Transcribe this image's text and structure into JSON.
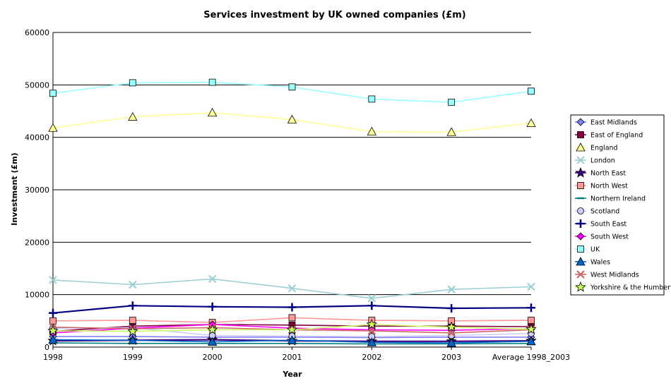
{
  "chart_data": {
    "type": "line",
    "title": "Services investment by UK owned companies (£m)",
    "xlabel": "Year",
    "ylabel": "Investment (£m)",
    "ylim": [
      0,
      60000
    ],
    "yticks": [
      0,
      10000,
      20000,
      30000,
      40000,
      50000,
      60000
    ],
    "grid": true,
    "legend_position": "right",
    "categories": [
      "1998",
      "1999",
      "2000",
      "2001",
      "2002",
      "2003",
      "Average 1998_2003"
    ],
    "series": [
      {
        "name": "East Midlands",
        "color": "#8080ff",
        "marker": "diamond",
        "values": [
          2000,
          2000,
          1900,
          1900,
          1800,
          1900,
          1900
        ]
      },
      {
        "name": "East of England",
        "color": "#800040",
        "marker": "square",
        "values": [
          3000,
          4000,
          4300,
          4200,
          4000,
          4000,
          3900
        ]
      },
      {
        "name": "England",
        "color": "#ffff99",
        "marker": "triangle",
        "values": [
          41800,
          43900,
          44700,
          43400,
          41100,
          41000,
          42700
        ]
      },
      {
        "name": "London",
        "color": "#9fd0d6",
        "marker": "x",
        "values": [
          12800,
          11900,
          13000,
          11200,
          9300,
          11000,
          11500
        ]
      },
      {
        "name": "North East",
        "color": "#400080",
        "marker": "star",
        "values": [
          1200,
          1300,
          1400,
          1200,
          1100,
          1100,
          1200
        ]
      },
      {
        "name": "North West",
        "color": "#ff9999",
        "marker": "square",
        "values": [
          5000,
          5100,
          4700,
          5600,
          5100,
          5000,
          5100
        ]
      },
      {
        "name": "Northern Ireland",
        "color": "#008080",
        "marker": "dash",
        "values": [
          800,
          700,
          700,
          700,
          600,
          600,
          700
        ]
      },
      {
        "name": "Scotland",
        "color": "#ccccff",
        "marker": "circle",
        "values": [
          3600,
          3700,
          2200,
          2100,
          2000,
          2200,
          2600
        ]
      },
      {
        "name": "South East",
        "color": "#000080",
        "marker": "plus",
        "values": [
          6500,
          7900,
          7700,
          7600,
          7900,
          7400,
          7500
        ]
      },
      {
        "name": "South West",
        "color": "#ff00ff",
        "marker": "diamond",
        "values": [
          2700,
          3600,
          4300,
          3600,
          3300,
          3200,
          3500
        ]
      },
      {
        "name": "UK",
        "color": "#99ffff",
        "marker": "square",
        "values": [
          48400,
          50400,
          50500,
          49600,
          47300,
          46700,
          48800
        ]
      },
      {
        "name": "Wales",
        "color": "#0066cc",
        "marker": "triangle",
        "values": [
          1400,
          1300,
          1000,
          1300,
          900,
          800,
          1100
        ]
      },
      {
        "name": "West Midlands",
        "color": "#cc6666",
        "marker": "x",
        "values": [
          3800,
          3500,
          3700,
          3300,
          3100,
          2700,
          3300
        ]
      },
      {
        "name": "Yorkshire & the Humber",
        "color": "#ccff66",
        "marker": "star",
        "values": [
          3100,
          3000,
          3300,
          3300,
          4300,
          3800,
          3400
        ]
      }
    ]
  }
}
